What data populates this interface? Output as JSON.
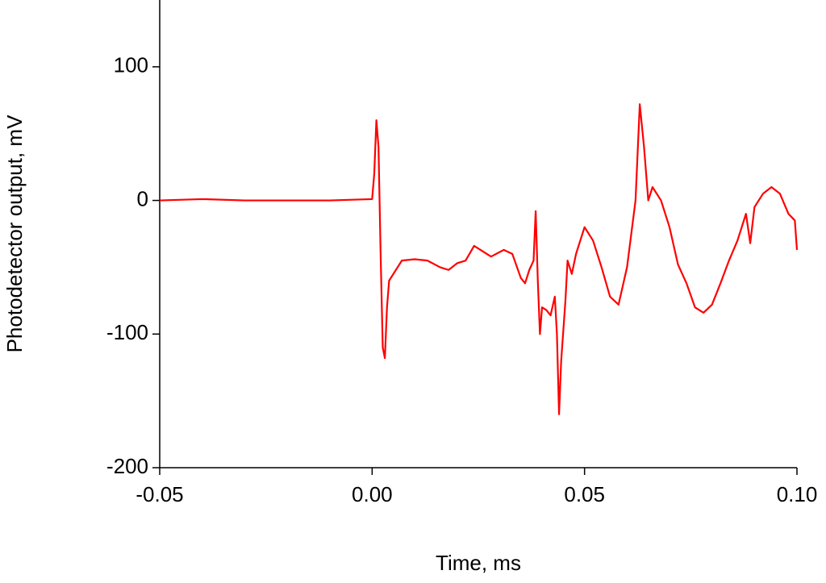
{
  "chart_data": {
    "type": "line",
    "x_label": "Time, ms",
    "y_label": "Photodetector output, mV",
    "xlim": [
      -0.05,
      0.1
    ],
    "ylim": [
      -200,
      150
    ],
    "xticks": [
      -0.05,
      {
        "value": 0,
        "label": "0.00"
      },
      0.05,
      {
        "value": 0.1,
        "label": "0.10"
      }
    ],
    "yticks": [
      -200,
      -100,
      0,
      100
    ],
    "series": [
      {
        "color": "#ff0000",
        "x": [
          -0.05,
          -0.04,
          -0.03,
          -0.02,
          -0.01,
          0.0,
          0.0005,
          0.001,
          0.0015,
          0.002,
          0.0025,
          0.003,
          0.0035,
          0.004,
          0.005,
          0.007,
          0.01,
          0.013,
          0.016,
          0.018,
          0.02,
          0.022,
          0.024,
          0.026,
          0.028,
          0.031,
          0.033,
          0.035,
          0.036,
          0.037,
          0.038,
          0.0385,
          0.039,
          0.0395,
          0.04,
          0.041,
          0.042,
          0.043,
          0.0435,
          0.044,
          0.0445,
          0.0455,
          0.046,
          0.047,
          0.048,
          0.05,
          0.052,
          0.054,
          0.056,
          0.058,
          0.06,
          0.062,
          0.063,
          0.064,
          0.065,
          0.066,
          0.068,
          0.07,
          0.072,
          0.074,
          0.076,
          0.078,
          0.08,
          0.082,
          0.084,
          0.086,
          0.088,
          0.089,
          0.09,
          0.092,
          0.094,
          0.096,
          0.098,
          0.0995,
          0.1
        ],
        "values": [
          0,
          1,
          0,
          0,
          0,
          1,
          20,
          60,
          40,
          -40,
          -110,
          -118,
          -80,
          -60,
          -55,
          -45,
          -44,
          -45,
          -50,
          -52,
          -47,
          -45,
          -34,
          -38,
          -42,
          -37,
          -40,
          -58,
          -62,
          -52,
          -45,
          -8,
          -60,
          -100,
          -80,
          -82,
          -86,
          -72,
          -100,
          -160,
          -120,
          -75,
          -45,
          -55,
          -40,
          -20,
          -30,
          -50,
          -72,
          -78,
          -50,
          0,
          72,
          40,
          0,
          10,
          0,
          -20,
          -48,
          -62,
          -80,
          -84,
          -78,
          -62,
          -45,
          -30,
          -10,
          -32,
          -5,
          5,
          10,
          5,
          -10,
          -15,
          -37
        ]
      }
    ]
  }
}
